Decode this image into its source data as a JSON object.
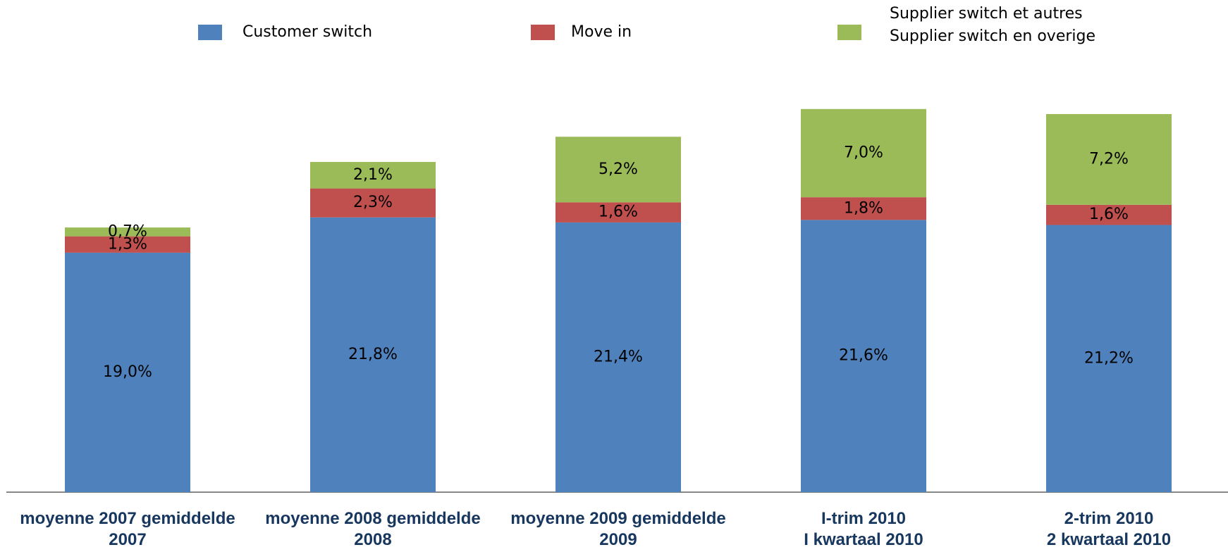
{
  "chart_data": {
    "type": "stacked_bar",
    "categories": [
      "moyenne 2007 gemiddelde\n2007",
      "moyenne 2008 gemiddelde\n2008",
      "moyenne 2009 gemiddelde\n2009",
      "I-trim 2010\nI kwartaal 2010",
      "2-trim 2010\n2 kwartaal 2010"
    ],
    "series": [
      {
        "name": "Customer switch",
        "color": "#4f81bd",
        "values": [
          19.0,
          21.8,
          21.4,
          21.6,
          21.2
        ],
        "value_labels": [
          "19,0%",
          "21,8%",
          "21,4%",
          "21,6%",
          "21,2%"
        ]
      },
      {
        "name": "Move in",
        "color": "#c0504d",
        "values": [
          1.3,
          2.3,
          1.6,
          1.8,
          1.6
        ],
        "value_labels": [
          "1,3%",
          "2,3%",
          "1,6%",
          "1,8%",
          "1,6%"
        ]
      },
      {
        "name": "Supplier switch et autres\nSupplier switch en overige",
        "color": "#9bbb59",
        "values": [
          0.7,
          2.1,
          5.2,
          7.0,
          7.2
        ],
        "value_labels": [
          "0,7%",
          "2,1%",
          "5,2%",
          "7,0%",
          "7,2%"
        ]
      }
    ],
    "legend": "top"
  }
}
